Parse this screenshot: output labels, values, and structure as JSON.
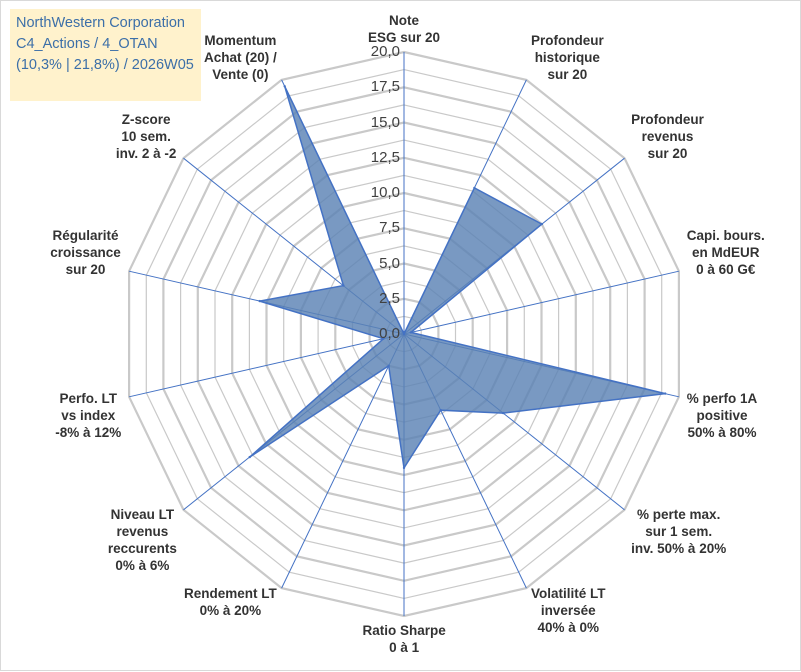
{
  "title_box": {
    "line1": "NorthWestern Corporation",
    "line2": "C4_Actions / 4_OTAN",
    "line3": "(10,3% | 21,8%) / 2026W05"
  },
  "colors": {
    "grid": "#c9c9c9",
    "axis": "#4472c4",
    "fill": "#5b82b4",
    "stroke": "#4472c4",
    "title_bg": "#fff2cc",
    "title_text": "#3c6fa8"
  },
  "chart_data": {
    "type": "radar",
    "title": "NorthWestern Corporation",
    "rmin": 0,
    "rmax": 20,
    "tick_step": 2.5,
    "tick_labels": [
      "0,0",
      "2,5",
      "5,0",
      "7,5",
      "10,0",
      "12,5",
      "15,0",
      "17,5",
      "20,0"
    ],
    "categories": [
      "Note\nESG sur 20",
      "Profondeur\nhistorique\nsur 20",
      "Profondeur\nrevenus\nsur 20",
      "Capi. bours.\nen MdEUR\n0 à 60 G€",
      "% perfo 1A\npositive\n50% à 80%",
      "% perte max.\nsur 1 sem.\ninv. 50% à 20%",
      "Volatilité LT\ninversée\n40% à 0%",
      "Ratio Sharpe\n0 à 1",
      "Rendement LT\n0% à 20%",
      "Niveau LT\nrevenus\nreccurents\n0% à 6%",
      "Perfo. LT\nvs index\n-8% à 12%",
      "Régularité\ncroissance\nsur 20",
      "Z-score\n10 sem.\ninv. 2 à -2",
      "Momentum\nAchat (20) /\nVente (0)"
    ],
    "series": [
      {
        "name": "NorthWestern Corporation",
        "values": [
          0,
          11.5,
          12.5,
          0.5,
          19.0,
          9.0,
          6.0,
          9.5,
          2.5,
          14.0,
          1.5,
          10.5,
          5.5,
          19.5
        ]
      }
    ]
  }
}
